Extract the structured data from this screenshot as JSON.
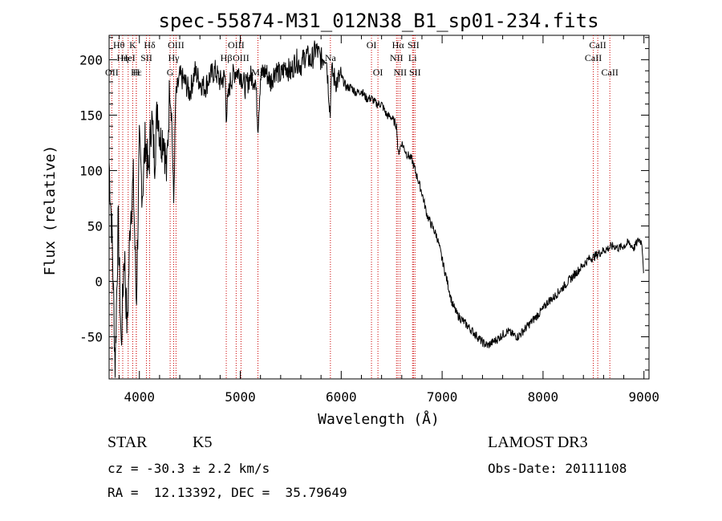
{
  "chart_data": {
    "type": "line",
    "title": "spec-55874-M31_012N38_B1_sp01-234.fits",
    "xlabel": "Wavelength (Å)",
    "ylabel": "Flux (relative)",
    "xlim": [
      3700,
      9050
    ],
    "ylim": [
      -88,
      222
    ],
    "xticks": [
      4000,
      5000,
      6000,
      7000,
      8000,
      9000
    ],
    "yticks": [
      -50,
      0,
      50,
      100,
      150,
      200
    ],
    "series": [
      {
        "name": "spectrum",
        "x": [
          3700,
          3730,
          3760,
          3790,
          3820,
          3850,
          3880,
          3910,
          3940,
          3970,
          4000,
          4030,
          4060,
          4090,
          4120,
          4150,
          4180,
          4210,
          4240,
          4270,
          4300,
          4320,
          4340,
          4360,
          4400,
          4450,
          4500,
          4550,
          4600,
          4650,
          4700,
          4750,
          4800,
          4850,
          4861,
          4900,
          4950,
          5000,
          5050,
          5100,
          5150,
          5175,
          5200,
          5250,
          5300,
          5350,
          5400,
          5450,
          5500,
          5550,
          5600,
          5650,
          5700,
          5750,
          5800,
          5850,
          5893,
          5900,
          5950,
          6000,
          6050,
          6100,
          6150,
          6200,
          6250,
          6300,
          6350,
          6400,
          6450,
          6500,
          6550,
          6563,
          6600,
          6650,
          6700,
          6750,
          6800,
          6850,
          6900,
          6950,
          7000,
          7050,
          7100,
          7150,
          7200,
          7250,
          7300,
          7350,
          7400,
          7450,
          7500,
          7550,
          7600,
          7650,
          7700,
          7750,
          7800,
          7850,
          7900,
          7950,
          8000,
          8050,
          8100,
          8150,
          8200,
          8250,
          8300,
          8350,
          8400,
          8450,
          8500,
          8550,
          8600,
          8650,
          8700,
          8750,
          8800,
          8850,
          8900,
          8950,
          8980,
          9000
        ],
        "y": [
          108,
          40,
          -75,
          55,
          -60,
          30,
          -45,
          60,
          90,
          -20,
          120,
          80,
          130,
          95,
          150,
          110,
          160,
          125,
          135,
          95,
          175,
          150,
          70,
          165,
          185,
          180,
          170,
          190,
          180,
          175,
          185,
          190,
          180,
          185,
          150,
          180,
          190,
          188,
          175,
          185,
          182,
          140,
          185,
          190,
          180,
          192,
          185,
          195,
          188,
          200,
          195,
          205,
          198,
          210,
          200,
          205,
          150,
          190,
          180,
          185,
          175,
          175,
          170,
          172,
          165,
          165,
          160,
          160,
          150,
          148,
          140,
          115,
          125,
          115,
          110,
          95,
          80,
          60,
          50,
          40,
          20,
          0,
          -20,
          -30,
          -35,
          -40,
          -45,
          -50,
          -55,
          -58,
          -55,
          -52,
          -48,
          -45,
          -48,
          -50,
          -45,
          -40,
          -35,
          -30,
          -25,
          -18,
          -15,
          -10,
          -5,
          0,
          5,
          10,
          15,
          20,
          22,
          25,
          28,
          30,
          32,
          30,
          32,
          35,
          30,
          38,
          35,
          5
        ]
      }
    ],
    "lines": [
      {
        "name": "Hθ",
        "wl": 3797,
        "row": 0
      },
      {
        "name": "OII",
        "wl": 3727,
        "row": 2
      },
      {
        "name": "Hη",
        "wl": 3835,
        "row": 1
      },
      {
        "name": "HeI",
        "wl": 3889,
        "row": 1
      },
      {
        "name": "Hε",
        "wl": 3970,
        "row": 2
      },
      {
        "name": "K",
        "wl": 3934,
        "row": 0
      },
      {
        "name": "H",
        "wl": 3969,
        "row": 2
      },
      {
        "name": "SII",
        "wl": 4070,
        "row": 1
      },
      {
        "name": "Hδ",
        "wl": 4102,
        "row": 0
      },
      {
        "name": "G",
        "wl": 4305,
        "row": 2
      },
      {
        "name": "OIII",
        "wl": 4363,
        "row": 0
      },
      {
        "name": "Hγ",
        "wl": 4340,
        "row": 1
      },
      {
        "name": "OIII",
        "wl": 4959,
        "row": 0
      },
      {
        "name": "OIII",
        "wl": 5007,
        "row": 1
      },
      {
        "name": "Hβ",
        "wl": 4861,
        "row": 1
      },
      {
        "name": "Mg",
        "wl": 5175,
        "row": 2
      },
      {
        "name": "Na",
        "wl": 5893,
        "row": 1
      },
      {
        "name": "OI",
        "wl": 6300,
        "row": 0
      },
      {
        "name": "OI",
        "wl": 6364,
        "row": 2
      },
      {
        "name": "Hα",
        "wl": 6563,
        "row": 0
      },
      {
        "name": "NII",
        "wl": 6548,
        "row": 1
      },
      {
        "name": "NII",
        "wl": 6584,
        "row": 2
      },
      {
        "name": "SII",
        "wl": 6716,
        "row": 0
      },
      {
        "name": "Li",
        "wl": 6707,
        "row": 1
      },
      {
        "name": "SII",
        "wl": 6731,
        "row": 2
      },
      {
        "name": "CaII",
        "wl": 8542,
        "row": 0
      },
      {
        "name": "CaII",
        "wl": 8498,
        "row": 1
      },
      {
        "name": "CaII",
        "wl": 8662,
        "row": 2
      }
    ]
  },
  "info": {
    "class": "STAR",
    "subclass": "K5",
    "cz": "cz = -30.3 ± 2.2 km/s",
    "coords": "RA =  12.13392, DEC =  35.79649",
    "survey": "LAMOST DR3",
    "obsdate": "Obs-Date: 20111108"
  }
}
